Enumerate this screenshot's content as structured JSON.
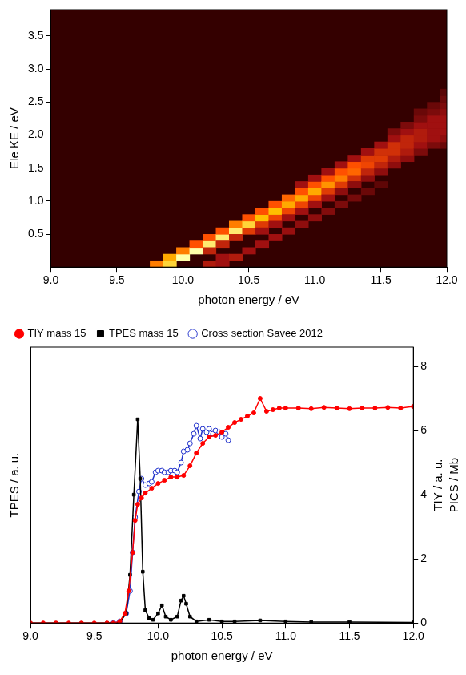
{
  "chart_data": [
    {
      "type": "heatmap",
      "xlabel": "photon energy / eV",
      "ylabel": "Ele KE / eV",
      "xlim": [
        9,
        12
      ],
      "xticks": [
        {
          "value": 9,
          "label": "9.0"
        },
        9.5,
        {
          "value": 10,
          "label": "10.0"
        },
        10.5,
        {
          "value": 11,
          "label": "11.0"
        },
        11.5,
        {
          "value": 12,
          "label": "12.0"
        }
      ],
      "ylim": [
        0,
        3.9
      ],
      "yticks": [
        0.5,
        {
          "value": 1,
          "label": "1.0"
        },
        1.5,
        {
          "value": 2,
          "label": "2.0"
        },
        2.5,
        {
          "value": 3,
          "label": "3.0"
        },
        3.5
      ],
      "grid": false,
      "cells": [
        [
          9.8,
          0.05,
          0.7
        ],
        [
          9.9,
          0.05,
          0.9
        ],
        [
          9.9,
          0.15,
          0.8
        ],
        [
          10.0,
          0.15,
          1.0
        ],
        [
          10.0,
          0.25,
          0.7
        ],
        [
          10.1,
          0.25,
          1.0
        ],
        [
          10.1,
          0.35,
          0.6
        ],
        [
          10.2,
          0.35,
          0.95
        ],
        [
          10.2,
          0.45,
          0.6
        ],
        [
          10.2,
          0.25,
          0.4
        ],
        [
          10.3,
          0.45,
          0.95
        ],
        [
          10.3,
          0.55,
          0.6
        ],
        [
          10.3,
          0.35,
          0.4
        ],
        [
          10.4,
          0.55,
          0.95
        ],
        [
          10.4,
          0.65,
          0.7
        ],
        [
          10.4,
          0.45,
          0.4
        ],
        [
          10.5,
          0.55,
          0.5
        ],
        [
          10.5,
          0.65,
          0.9
        ],
        [
          10.5,
          0.75,
          0.6
        ],
        [
          10.6,
          0.65,
          0.5
        ],
        [
          10.6,
          0.75,
          0.85
        ],
        [
          10.6,
          0.85,
          0.6
        ],
        [
          10.6,
          0.55,
          0.3
        ],
        [
          10.7,
          0.75,
          0.55
        ],
        [
          10.7,
          0.85,
          0.85
        ],
        [
          10.7,
          0.95,
          0.6
        ],
        [
          10.7,
          0.65,
          0.3
        ],
        [
          10.8,
          0.85,
          0.55
        ],
        [
          10.8,
          0.95,
          0.8
        ],
        [
          10.8,
          1.05,
          0.65
        ],
        [
          10.8,
          0.75,
          0.3
        ],
        [
          10.9,
          0.95,
          0.55
        ],
        [
          10.9,
          1.05,
          0.8
        ],
        [
          10.9,
          1.15,
          0.6
        ],
        [
          10.9,
          0.85,
          0.3
        ],
        [
          10.9,
          1.25,
          0.3
        ],
        [
          11.0,
          1.05,
          0.55
        ],
        [
          11.0,
          1.15,
          0.8
        ],
        [
          11.0,
          1.25,
          0.6
        ],
        [
          11.0,
          0.95,
          0.3
        ],
        [
          11.0,
          1.35,
          0.3
        ],
        [
          11.1,
          1.15,
          0.5
        ],
        [
          11.1,
          1.25,
          0.75
        ],
        [
          11.1,
          1.35,
          0.6
        ],
        [
          11.1,
          1.05,
          0.3
        ],
        [
          11.1,
          1.45,
          0.3
        ],
        [
          11.2,
          1.25,
          0.5
        ],
        [
          11.2,
          1.35,
          0.7
        ],
        [
          11.2,
          1.45,
          0.6
        ],
        [
          11.2,
          1.15,
          0.25
        ],
        [
          11.2,
          1.55,
          0.3
        ],
        [
          11.3,
          1.35,
          0.45
        ],
        [
          11.3,
          1.45,
          0.65
        ],
        [
          11.3,
          1.55,
          0.6
        ],
        [
          11.3,
          1.25,
          0.25
        ],
        [
          11.3,
          1.65,
          0.3
        ],
        [
          11.4,
          1.35,
          0.25
        ],
        [
          11.4,
          1.45,
          0.4
        ],
        [
          11.4,
          1.55,
          0.55
        ],
        [
          11.4,
          1.65,
          0.5
        ],
        [
          11.4,
          1.75,
          0.3
        ],
        [
          11.5,
          1.45,
          0.25
        ],
        [
          11.5,
          1.55,
          0.4
        ],
        [
          11.5,
          1.65,
          0.5
        ],
        [
          11.5,
          1.75,
          0.45
        ],
        [
          11.5,
          1.85,
          0.3
        ],
        [
          11.6,
          1.55,
          0.25
        ],
        [
          11.6,
          1.65,
          0.35
        ],
        [
          11.6,
          1.75,
          0.45
        ],
        [
          11.6,
          1.85,
          0.45
        ],
        [
          11.6,
          1.95,
          0.3
        ],
        [
          11.6,
          2.05,
          0.2
        ],
        [
          11.7,
          1.65,
          0.25
        ],
        [
          11.7,
          1.75,
          0.35
        ],
        [
          11.7,
          1.85,
          0.4
        ],
        [
          11.7,
          1.95,
          0.4
        ],
        [
          11.7,
          2.05,
          0.3
        ],
        [
          11.7,
          2.15,
          0.2
        ],
        [
          11.8,
          1.75,
          0.2
        ],
        [
          11.8,
          1.85,
          0.3
        ],
        [
          11.8,
          1.95,
          0.35
        ],
        [
          11.8,
          2.05,
          0.35
        ],
        [
          11.8,
          2.15,
          0.3
        ],
        [
          11.8,
          2.25,
          0.2
        ],
        [
          11.8,
          2.35,
          0.15
        ],
        [
          11.9,
          1.85,
          0.2
        ],
        [
          11.9,
          1.95,
          0.3
        ],
        [
          11.9,
          2.05,
          0.3
        ],
        [
          11.9,
          2.15,
          0.3
        ],
        [
          11.9,
          2.25,
          0.3
        ],
        [
          11.9,
          2.35,
          0.2
        ],
        [
          11.9,
          2.45,
          0.15
        ],
        [
          12.0,
          1.85,
          0.15
        ],
        [
          12.0,
          1.95,
          0.25
        ],
        [
          12.0,
          2.05,
          0.3
        ],
        [
          12.0,
          2.15,
          0.3
        ],
        [
          12.0,
          2.25,
          0.3
        ],
        [
          12.0,
          2.35,
          0.25
        ],
        [
          12.0,
          2.45,
          0.2
        ],
        [
          12.0,
          2.55,
          0.15
        ],
        [
          12.0,
          2.65,
          0.1
        ],
        [
          10.2,
          0.05,
          0.35
        ],
        [
          10.3,
          0.05,
          0.3
        ],
        [
          10.3,
          0.15,
          0.3
        ],
        [
          10.4,
          0.15,
          0.35
        ],
        [
          10.5,
          0.25,
          0.3
        ],
        [
          10.6,
          0.35,
          0.3
        ],
        [
          10.7,
          0.45,
          0.3
        ],
        [
          10.8,
          0.55,
          0.28
        ],
        [
          10.9,
          0.65,
          0.25
        ],
        [
          11.0,
          0.75,
          0.25
        ],
        [
          11.1,
          0.85,
          0.22
        ],
        [
          11.2,
          0.95,
          0.2
        ],
        [
          11.3,
          1.05,
          0.18
        ],
        [
          11.4,
          1.15,
          0.15
        ],
        [
          11.5,
          1.25,
          0.12
        ]
      ]
    },
    {
      "type": "line",
      "xlabel": "photon energy / eV",
      "ylabel": "TPES / a. u.",
      "y2label": [
        "TIY / a. u.",
        "PICS / Mb"
      ],
      "xlim": [
        9,
        12
      ],
      "xticks": [
        {
          "value": 9,
          "label": "9.0"
        },
        9.5,
        {
          "value": 10,
          "label": "10.0"
        },
        10.5,
        {
          "value": 11,
          "label": "11.0"
        },
        11.5,
        {
          "value": 12,
          "label": "12.0"
        }
      ],
      "ylim": [
        0,
        8.6
      ],
      "y2lim": [
        0,
        8.6
      ],
      "y2ticks": [
        0,
        2,
        4,
        6,
        8
      ],
      "grid": false,
      "legend": "top",
      "series": [
        {
          "name": "TIY mass 15",
          "color": "#ff0000",
          "marker": "circle",
          "axis": "y2",
          "x": [
            9.0,
            9.1,
            9.2,
            9.3,
            9.4,
            9.5,
            9.6,
            9.65,
            9.7,
            9.74,
            9.77,
            9.8,
            9.82,
            9.84,
            9.87,
            9.9,
            9.95,
            10.0,
            10.05,
            10.1,
            10.15,
            10.2,
            10.25,
            10.3,
            10.35,
            10.4,
            10.45,
            10.5,
            10.55,
            10.6,
            10.65,
            10.7,
            10.75,
            10.8,
            10.85,
            10.9,
            10.95,
            11.0,
            11.1,
            11.2,
            11.3,
            11.4,
            11.5,
            11.6,
            11.7,
            11.8,
            11.9,
            12.0
          ],
          "values": [
            0,
            0,
            0,
            0,
            0,
            0,
            0,
            0,
            0.05,
            0.3,
            1.0,
            2.2,
            3.2,
            3.7,
            3.9,
            4.05,
            4.2,
            4.35,
            4.45,
            4.55,
            4.55,
            4.6,
            4.9,
            5.3,
            5.6,
            5.8,
            5.85,
            5.95,
            6.1,
            6.25,
            6.35,
            6.45,
            6.55,
            7.0,
            6.6,
            6.65,
            6.7,
            6.7,
            6.7,
            6.68,
            6.72,
            6.7,
            6.68,
            6.7,
            6.7,
            6.72,
            6.7,
            6.75
          ]
        },
        {
          "name": "TPES mass 15",
          "color": "#000000",
          "marker": "square",
          "x": [
            9.0,
            9.2,
            9.4,
            9.6,
            9.7,
            9.75,
            9.78,
            9.81,
            9.84,
            9.86,
            9.88,
            9.9,
            9.93,
            9.96,
            10.0,
            10.03,
            10.06,
            10.1,
            10.15,
            10.18,
            10.2,
            10.22,
            10.25,
            10.3,
            10.4,
            10.5,
            10.6,
            10.8,
            11.0,
            11.2,
            11.5,
            12.0
          ],
          "values": [
            0,
            0,
            0,
            0,
            0.02,
            0.3,
            1.5,
            4.0,
            6.35,
            4.5,
            1.6,
            0.4,
            0.15,
            0.1,
            0.3,
            0.55,
            0.2,
            0.1,
            0.2,
            0.7,
            0.85,
            0.6,
            0.2,
            0.05,
            0.1,
            0.05,
            0.05,
            0.08,
            0.05,
            0.03,
            0.03,
            0.02
          ]
        },
        {
          "name": "Cross section Savee 2012",
          "color": "#2233cc",
          "marker": "open_circle",
          "axis": "y2",
          "x": [
            9.65,
            9.7,
            9.75,
            9.78,
            9.8,
            9.82,
            9.85,
            9.87,
            9.9,
            9.93,
            9.95,
            9.98,
            10.0,
            10.03,
            10.05,
            10.08,
            10.1,
            10.13,
            10.15,
            10.18,
            10.2,
            10.23,
            10.25,
            10.28,
            10.3,
            10.33,
            10.35,
            10.38,
            10.4,
            10.43,
            10.45,
            10.48,
            10.5,
            10.53,
            10.55
          ],
          "values": [
            0,
            0.05,
            0.3,
            1.0,
            2.2,
            3.3,
            4.1,
            4.5,
            4.3,
            4.35,
            4.4,
            4.7,
            4.75,
            4.75,
            4.7,
            4.7,
            4.75,
            4.75,
            4.7,
            5.0,
            5.35,
            5.4,
            5.6,
            5.9,
            6.15,
            5.75,
            6.05,
            5.95,
            6.05,
            5.9,
            6.0,
            5.95,
            5.8,
            5.9,
            5.7
          ]
        }
      ]
    }
  ]
}
